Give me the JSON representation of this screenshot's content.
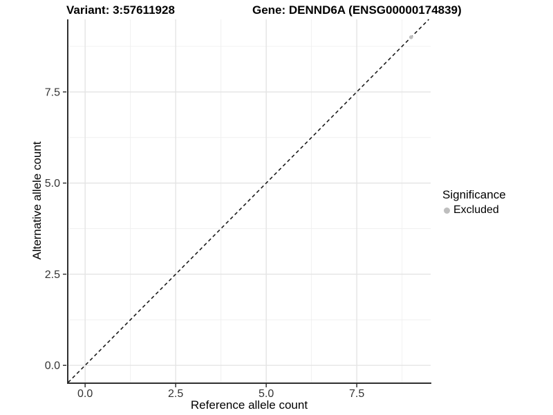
{
  "header": {
    "variant_title": "Variant: 3:57611928",
    "gene_title": "Gene: DENND6A (ENSG00000174839)"
  },
  "axes": {
    "x_label": "Reference allele count",
    "y_label": "Alternative allele count",
    "x_tick_labels": [
      "0.0",
      "2.5",
      "5.0",
      "7.5"
    ],
    "y_tick_labels": [
      "0.0",
      "2.5",
      "5.0",
      "7.5"
    ]
  },
  "legend": {
    "title": "Significance",
    "items": [
      {
        "label": "Excluded",
        "color": "#bebebe"
      }
    ]
  },
  "colors": {
    "point": "#bebebe",
    "grid_major": "#e4e4e4",
    "grid_minor": "#f0f0f0",
    "axis_line": "#2f2f2f",
    "tick_mark": "#333333",
    "dashed_line": "#1a1a1a"
  },
  "chart_data": {
    "type": "scatter",
    "title": "Variant: 3:57611928 | Gene: DENND6A (ENSG00000174839)",
    "xlabel": "Reference allele count",
    "ylabel": "Alternative allele count",
    "xlim": [
      -0.48,
      9.54
    ],
    "ylim": [
      -0.47,
      9.49
    ],
    "x_ticks": [
      0,
      2.5,
      5,
      7.5
    ],
    "y_ticks": [
      0,
      2.5,
      5,
      7.5
    ],
    "x_minor_gridlines": [
      1.25,
      3.75,
      6.25,
      8.75
    ],
    "y_minor_gridlines": [
      1.25,
      3.75,
      6.25,
      8.75
    ],
    "grid": true,
    "legend_position": "right",
    "series": [
      {
        "name": "Excluded",
        "color": "#bebebe",
        "points": [
          {
            "x": 9,
            "y": 9
          }
        ]
      }
    ],
    "reference_line": {
      "type": "identity",
      "slope": 1,
      "intercept": 0,
      "style": "dashed"
    }
  }
}
